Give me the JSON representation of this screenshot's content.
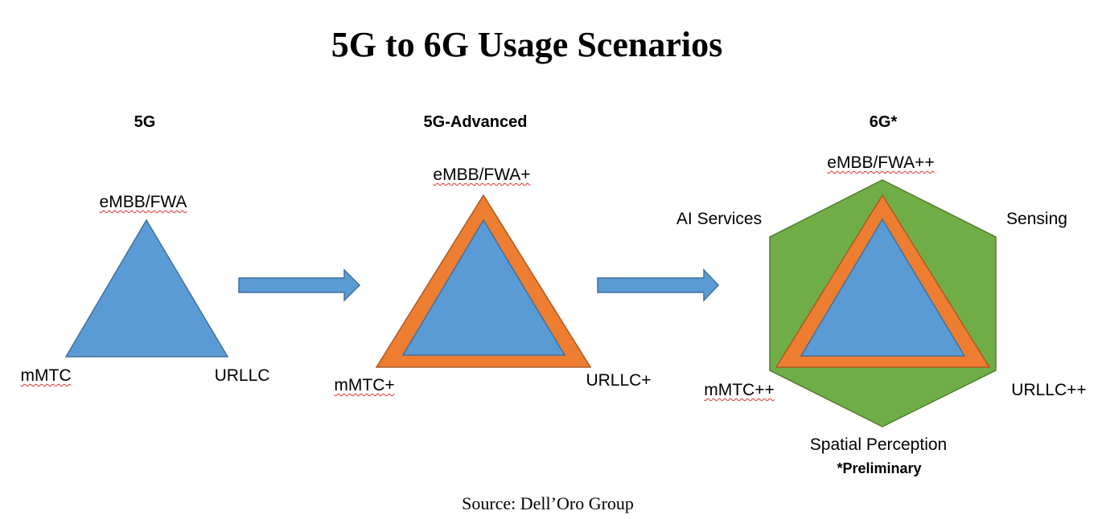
{
  "title": "5G to 6G Usage Scenarios",
  "colors": {
    "core": "#5b9bd5",
    "advanced": "#ed7d31",
    "sixg": "#70ad47",
    "arrow": "#5b9bd5"
  },
  "stages": [
    {
      "heading": "5G",
      "labels": {
        "top": "eMBB/FWA",
        "left": "mMTC",
        "right": "URLLC"
      }
    },
    {
      "heading": "5G-Advanced",
      "labels": {
        "top": "eMBB/FWA+",
        "left": "mMTC+",
        "right": "URLLC+"
      }
    },
    {
      "heading": "6G*",
      "labels": {
        "top": "eMBB/FWA++",
        "left": "mMTC++",
        "right": "URLLC++",
        "upper_left": "AI Services",
        "upper_right": "Sensing",
        "bottom": "Spatial Perception"
      },
      "note": "*Preliminary"
    }
  ],
  "source": "Source: Dell’Oro Group"
}
